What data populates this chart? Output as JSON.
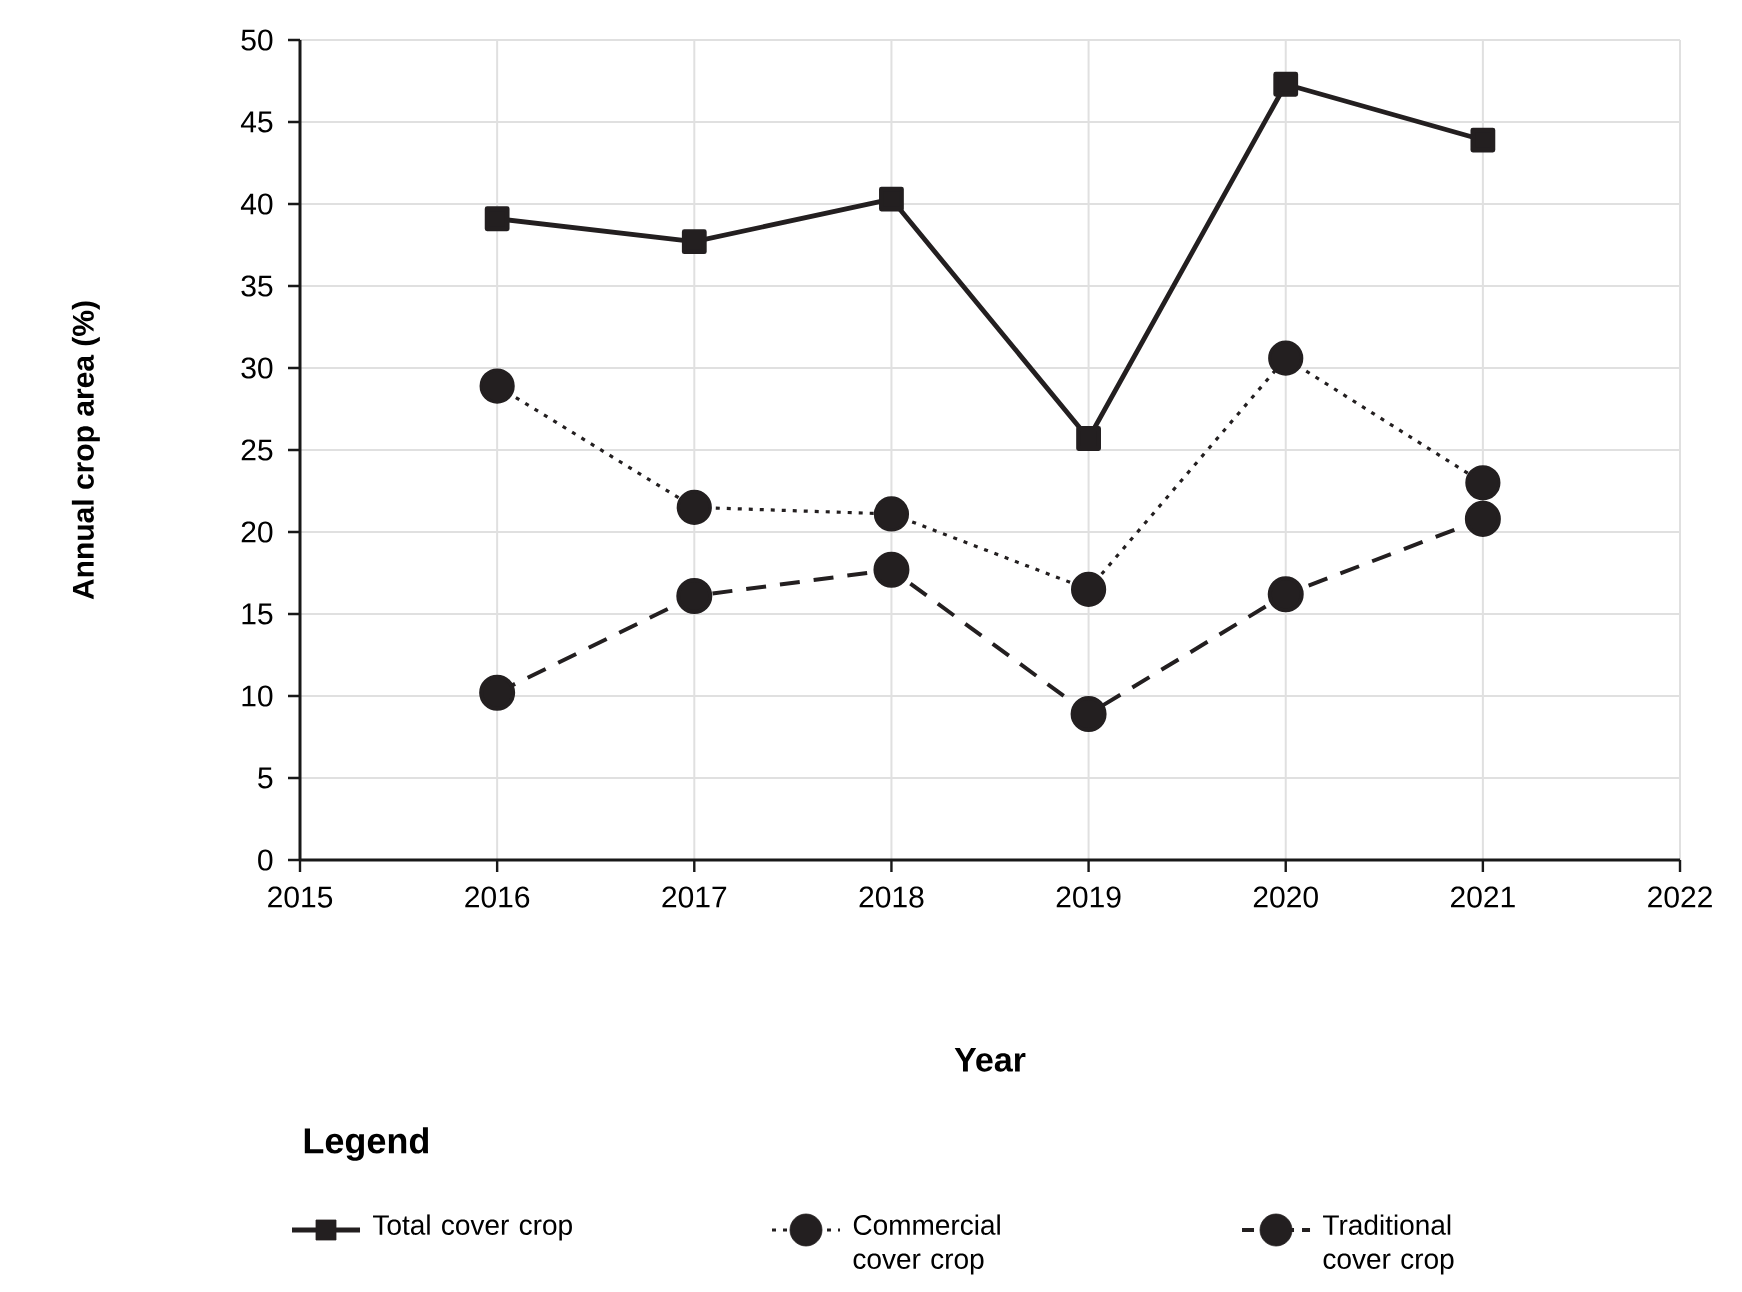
{
  "chart_data": {
    "type": "line",
    "xlabel": "Year",
    "ylabel": "Annual crop area (%)",
    "legend_title": "Legend",
    "x": [
      2016,
      2017,
      2018,
      2019,
      2020,
      2021
    ],
    "series": [
      {
        "name": "Total cover crop",
        "color": "#231f20",
        "marker": "square",
        "line_style": "solid",
        "values": [
          39.1,
          37.7,
          40.3,
          25.7,
          47.3,
          43.9
        ]
      },
      {
        "name": "Commercial cover crop",
        "color": "#231f20",
        "marker": "circle",
        "line_style": "dotted",
        "values": [
          28.9,
          21.5,
          21.1,
          16.5,
          30.6,
          23.0
        ]
      },
      {
        "name": "Traditional cover crop",
        "color": "#231f20",
        "marker": "circle",
        "line_style": "dashed",
        "values": [
          10.2,
          16.1,
          17.7,
          8.9,
          16.2,
          20.8
        ]
      }
    ],
    "xlim": [
      2015,
      2022
    ],
    "xticks": [
      2015,
      2016,
      2017,
      2018,
      2019,
      2020,
      2021,
      2022
    ],
    "ylim": [
      0,
      50
    ],
    "yticks": [
      0,
      5,
      10,
      15,
      20,
      25,
      30,
      35,
      40,
      45,
      50
    ],
    "grid": true,
    "legend": "bottom"
  }
}
